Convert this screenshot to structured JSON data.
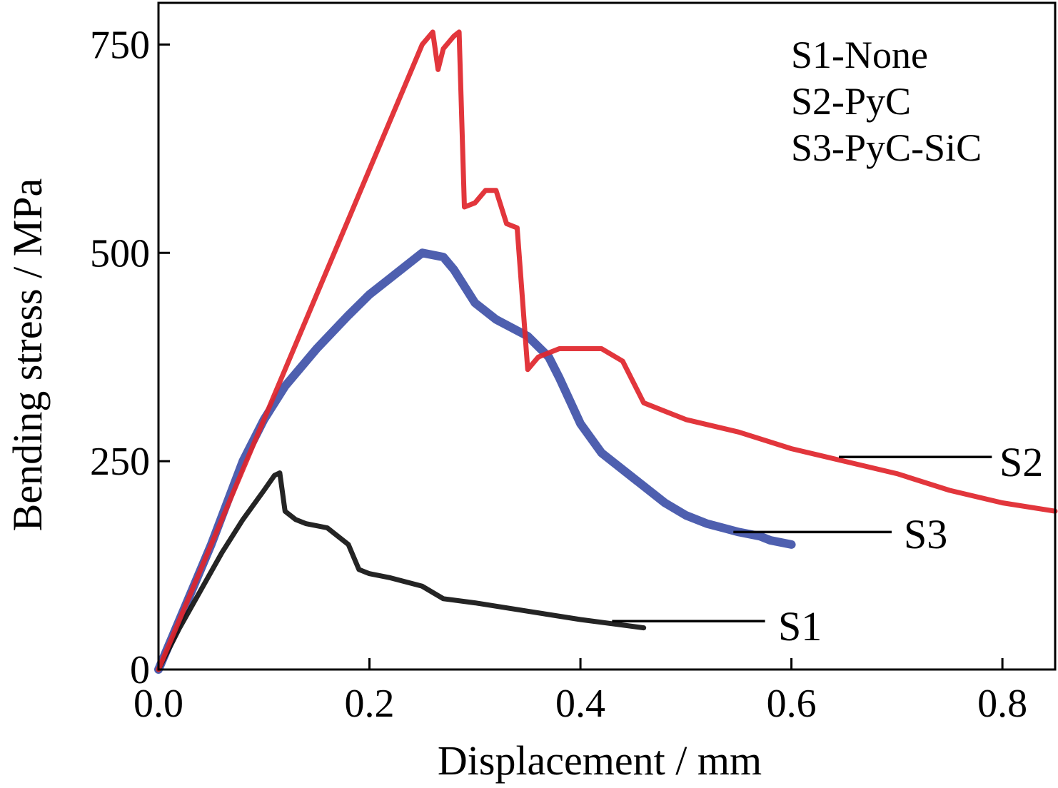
{
  "chart_data": {
    "type": "line",
    "xlabel": "Displacement / mm",
    "ylabel": "Bending stress / MPa",
    "xlim": [
      0,
      0.85
    ],
    "ylim": [
      0,
      800
    ],
    "xticks": [
      0.0,
      0.2,
      0.4,
      0.6,
      0.8
    ],
    "xtick_labels": [
      "0.0",
      "0.2",
      "0.4",
      "0.6",
      "0.8"
    ],
    "yticks": [
      0,
      250,
      500,
      750
    ],
    "ytick_labels": [
      "0",
      "250",
      "500",
      "750"
    ],
    "grid": false,
    "legend_position": "top-right",
    "legend_entries": [
      "S1-None",
      "S2-PyC",
      "S3-PyC-SiC"
    ],
    "colors": {
      "S1": "#111111",
      "S2": "#e0252b",
      "S3": "#3f51a8"
    },
    "series": [
      {
        "name": "S1",
        "x": [
          0.0,
          0.02,
          0.04,
          0.06,
          0.08,
          0.1,
          0.11,
          0.115,
          0.12,
          0.13,
          0.14,
          0.16,
          0.18,
          0.19,
          0.2,
          0.22,
          0.25,
          0.27,
          0.3,
          0.35,
          0.4,
          0.43,
          0.46
        ],
        "y": [
          0,
          50,
          95,
          140,
          180,
          215,
          233,
          236,
          190,
          180,
          175,
          170,
          150,
          120,
          115,
          110,
          100,
          85,
          80,
          70,
          60,
          55,
          50
        ]
      },
      {
        "name": "S2",
        "x": [
          0.0,
          0.02,
          0.05,
          0.08,
          0.1,
          0.12,
          0.15,
          0.18,
          0.2,
          0.23,
          0.25,
          0.26,
          0.265,
          0.27,
          0.28,
          0.285,
          0.29,
          0.3,
          0.31,
          0.32,
          0.33,
          0.34,
          0.35,
          0.36,
          0.38,
          0.4,
          0.42,
          0.44,
          0.46,
          0.48,
          0.5,
          0.55,
          0.6,
          0.65,
          0.7,
          0.75,
          0.8,
          0.85
        ],
        "y": [
          0,
          60,
          150,
          240,
          300,
          360,
          450,
          540,
          600,
          690,
          750,
          765,
          720,
          745,
          760,
          765,
          555,
          560,
          575,
          575,
          535,
          530,
          360,
          375,
          385,
          385,
          385,
          370,
          320,
          310,
          300,
          285,
          265,
          250,
          235,
          215,
          200,
          190
        ]
      },
      {
        "name": "S3",
        "x": [
          0.0,
          0.02,
          0.05,
          0.08,
          0.1,
          0.12,
          0.15,
          0.18,
          0.2,
          0.22,
          0.25,
          0.27,
          0.28,
          0.3,
          0.32,
          0.35,
          0.37,
          0.38,
          0.4,
          0.42,
          0.45,
          0.48,
          0.5,
          0.52,
          0.55,
          0.57,
          0.58,
          0.6
        ],
        "y": [
          0,
          60,
          150,
          250,
          300,
          340,
          385,
          425,
          450,
          470,
          500,
          495,
          480,
          440,
          420,
          400,
          375,
          350,
          295,
          260,
          230,
          200,
          185,
          175,
          165,
          160,
          155,
          150
        ]
      }
    ],
    "annotations": [
      {
        "text": "S1",
        "series": "S1"
      },
      {
        "text": "S2",
        "series": "S2"
      },
      {
        "text": "S3",
        "series": "S3"
      }
    ]
  }
}
